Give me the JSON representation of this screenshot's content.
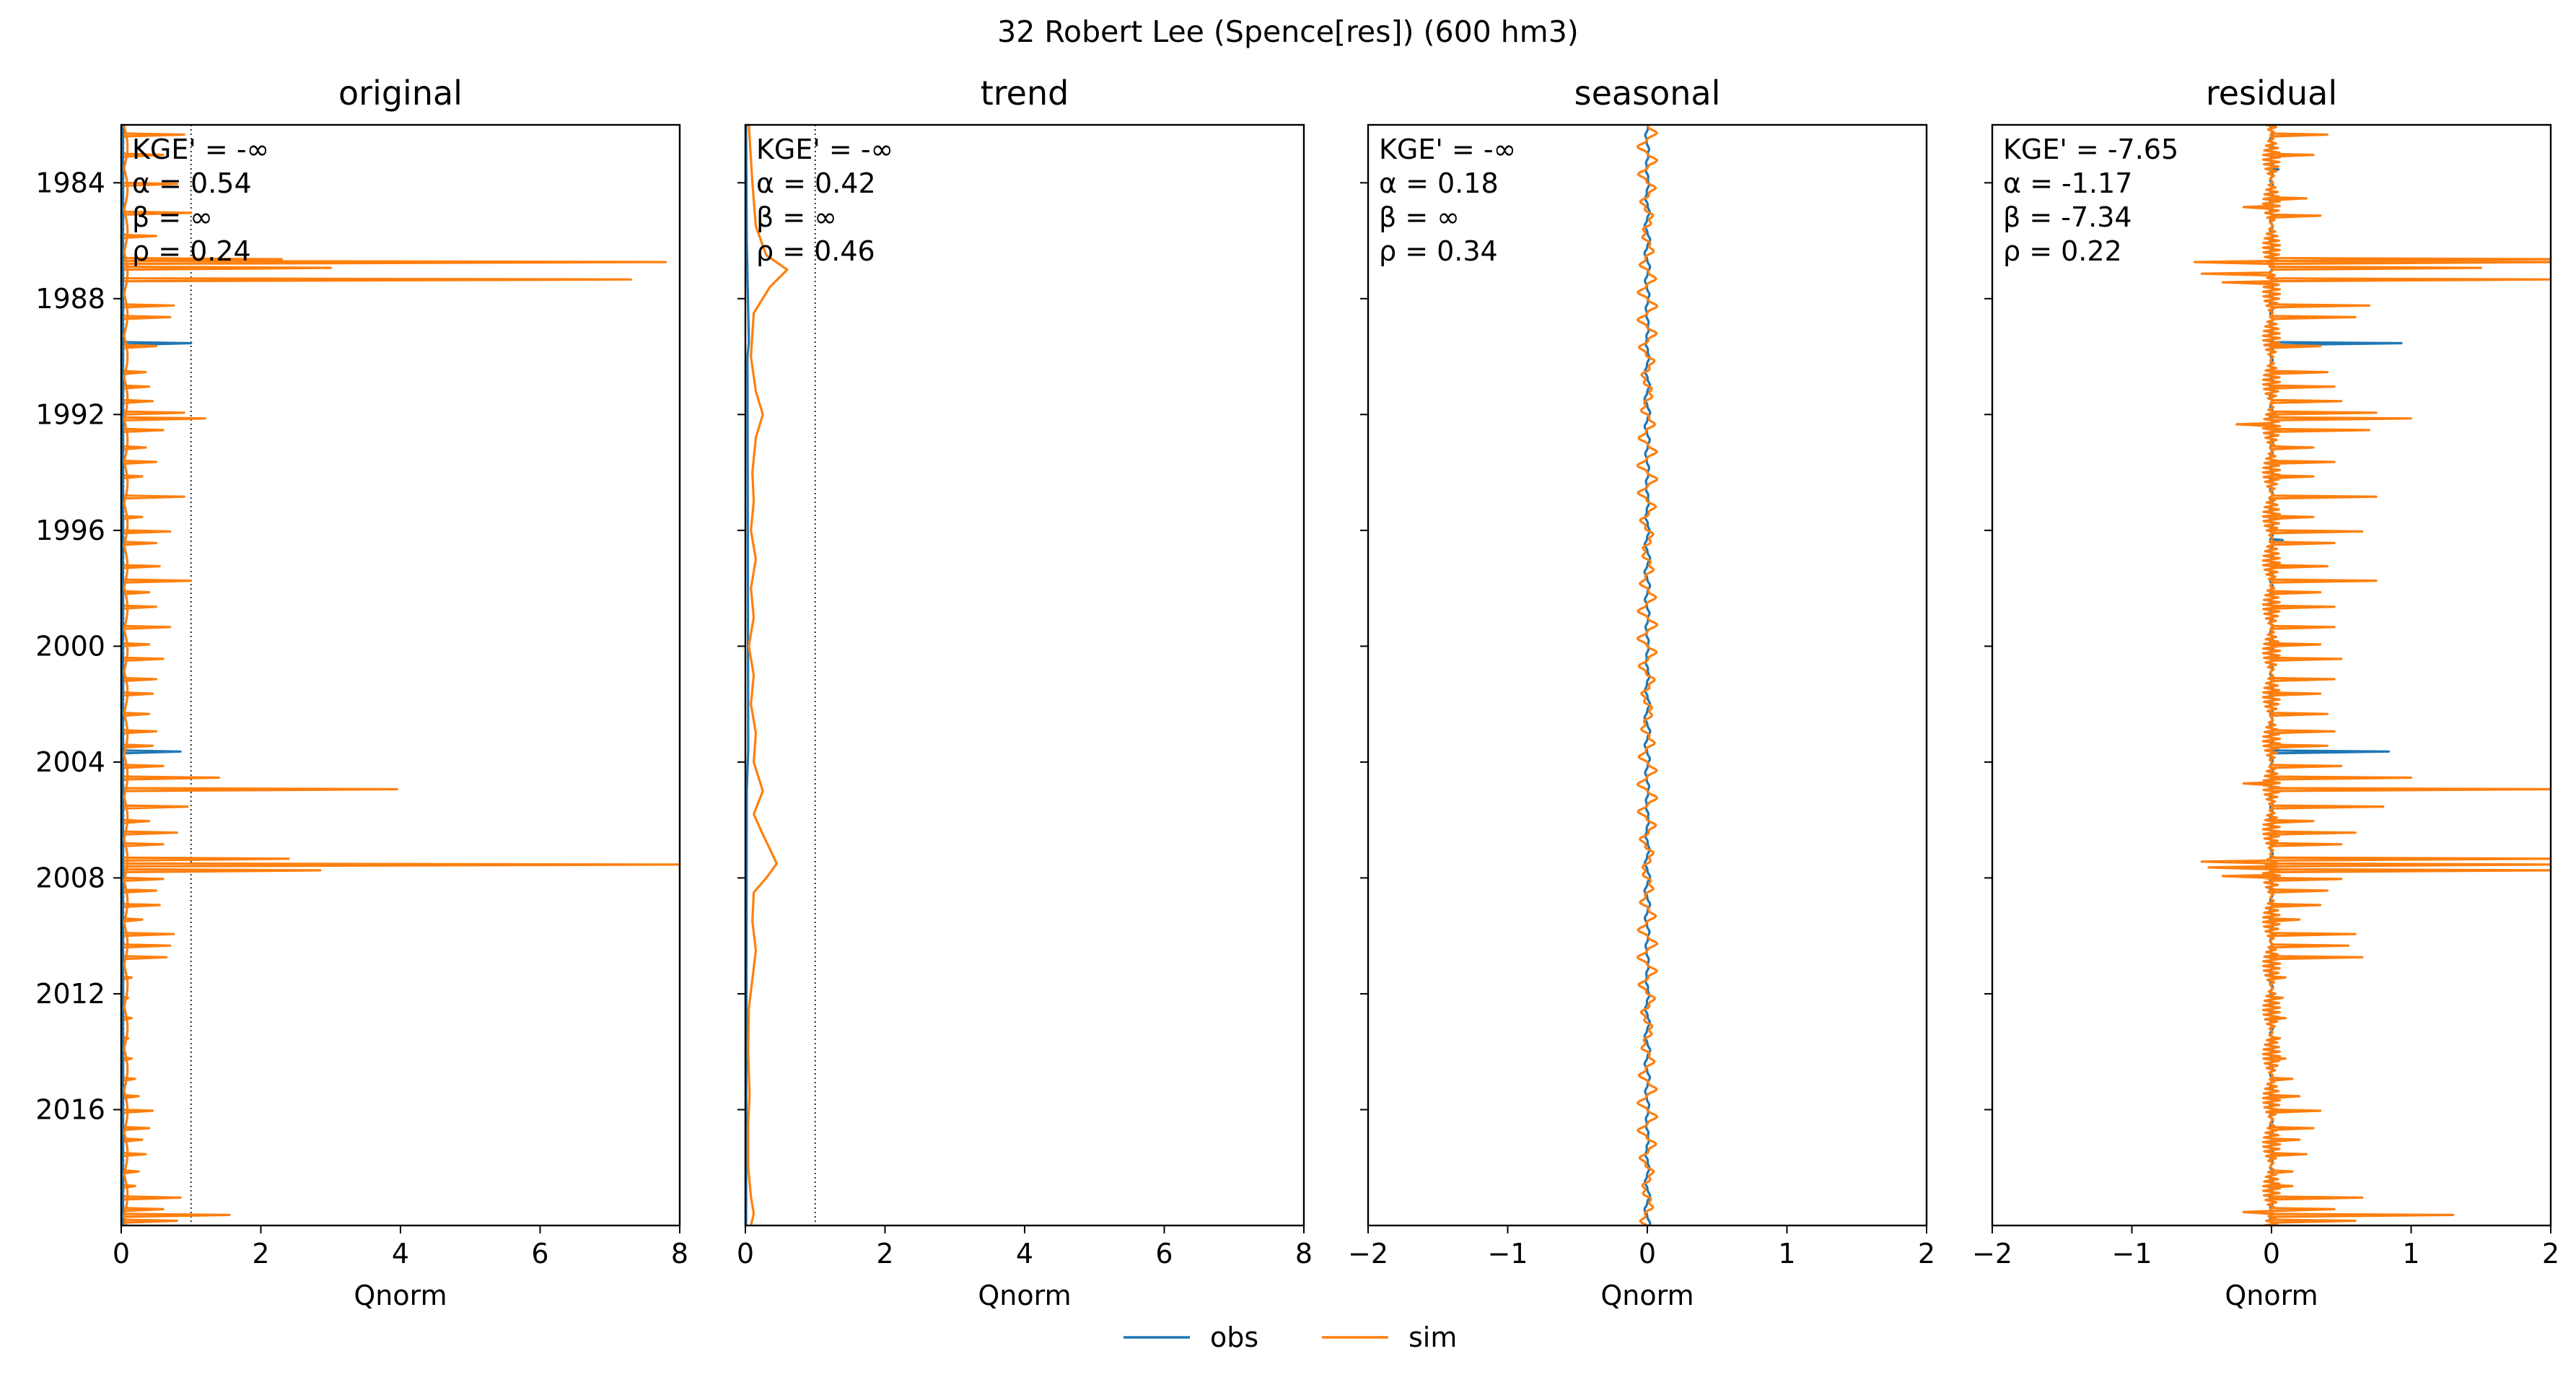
{
  "figure": {
    "suptitle": "32  Robert Lee (Spence[res]) (600 hm3)",
    "legend": [
      {
        "label": "obs",
        "color": "#1f77b4"
      },
      {
        "label": "sim",
        "color": "#ff7f0e"
      }
    ],
    "legend_placement": "bottom-center"
  },
  "chart_data": [
    {
      "type": "line",
      "title": "original",
      "xlabel": "Qnorm",
      "ylabel": "",
      "xlim": [
        0,
        8
      ],
      "xticks": [
        "0",
        "2",
        "4",
        "6",
        "8"
      ],
      "ylim": [
        1982,
        2020
      ],
      "yticks": [
        "1984",
        "1988",
        "1992",
        "1996",
        "2000",
        "2004",
        "2008",
        "2012",
        "2016"
      ],
      "reference_line_x": 1,
      "stats": [
        "KGE' = -∞",
        "α = 0.54",
        "β = ∞",
        "ρ = 0.24"
      ],
      "series": [
        {
          "name": "obs",
          "color": "#1f77b4",
          "x_baseline": 0.02,
          "spikes": [
            [
              1989.5,
              1.0
            ],
            [
              2003.6,
              0.85
            ]
          ]
        },
        {
          "name": "sim",
          "color": "#ff7f0e",
          "x_baseline": 0.04,
          "spikes": [
            [
              1982.3,
              0.9
            ],
            [
              1983.0,
              0.6
            ],
            [
              1984.0,
              0.8
            ],
            [
              1985.0,
              1.0
            ],
            [
              1985.8,
              0.5
            ],
            [
              1986.6,
              2.3
            ],
            [
              1986.7,
              7.8
            ],
            [
              1986.9,
              3.0
            ],
            [
              1987.3,
              7.3
            ],
            [
              1988.2,
              0.75
            ],
            [
              1988.6,
              0.7
            ],
            [
              1989.6,
              0.5
            ],
            [
              1990.5,
              0.35
            ],
            [
              1991.0,
              0.4
            ],
            [
              1991.5,
              0.45
            ],
            [
              1991.9,
              0.9
            ],
            [
              1992.1,
              1.2
            ],
            [
              1992.5,
              0.6
            ],
            [
              1993.1,
              0.35
            ],
            [
              1993.6,
              0.5
            ],
            [
              1994.1,
              0.3
            ],
            [
              1994.8,
              0.9
            ],
            [
              1995.5,
              0.3
            ],
            [
              1996.0,
              0.7
            ],
            [
              1996.4,
              0.5
            ],
            [
              1997.2,
              0.55
            ],
            [
              1997.7,
              1.0
            ],
            [
              1998.1,
              0.4
            ],
            [
              1998.6,
              0.5
            ],
            [
              1999.3,
              0.7
            ],
            [
              1999.9,
              0.4
            ],
            [
              2000.4,
              0.6
            ],
            [
              2001.1,
              0.5
            ],
            [
              2001.6,
              0.45
            ],
            [
              2002.3,
              0.4
            ],
            [
              2002.9,
              0.5
            ],
            [
              2003.4,
              0.45
            ],
            [
              2004.1,
              0.6
            ],
            [
              2004.5,
              1.4
            ],
            [
              2004.9,
              3.95
            ],
            [
              2005.5,
              0.95
            ],
            [
              2006.0,
              0.4
            ],
            [
              2006.4,
              0.8
            ],
            [
              2006.8,
              0.6
            ],
            [
              2007.3,
              2.4
            ],
            [
              2007.5,
              8.0
            ],
            [
              2007.7,
              2.85
            ],
            [
              2008.0,
              0.6
            ],
            [
              2008.4,
              0.5
            ],
            [
              2008.9,
              0.55
            ],
            [
              2009.4,
              0.3
            ],
            [
              2009.9,
              0.75
            ],
            [
              2010.3,
              0.7
            ],
            [
              2010.7,
              0.65
            ],
            [
              2011.4,
              0.15
            ],
            [
              2012.1,
              0.1
            ],
            [
              2012.8,
              0.15
            ],
            [
              2013.5,
              0.1
            ],
            [
              2014.2,
              0.15
            ],
            [
              2014.9,
              0.2
            ],
            [
              2015.5,
              0.25
            ],
            [
              2016.0,
              0.45
            ],
            [
              2016.6,
              0.4
            ],
            [
              2017.0,
              0.3
            ],
            [
              2017.5,
              0.35
            ],
            [
              2018.1,
              0.25
            ],
            [
              2018.6,
              0.2
            ],
            [
              2019.0,
              0.85
            ],
            [
              2019.4,
              0.6
            ],
            [
              2019.6,
              1.55
            ],
            [
              2019.8,
              0.8
            ]
          ]
        }
      ]
    },
    {
      "type": "line",
      "title": "trend",
      "xlabel": "Qnorm",
      "ylabel": "",
      "xlim": [
        0,
        8
      ],
      "xticks": [
        "0",
        "2",
        "4",
        "6",
        "8"
      ],
      "ylim": [
        1982,
        2020
      ],
      "reference_line_x": 1,
      "stats": [
        "KGE' = -∞",
        "α = 0.42",
        "β = ∞",
        "ρ = 0.46"
      ],
      "series": [
        {
          "name": "obs",
          "color": "#1f77b4",
          "points": [
            [
              1982,
              0.01
            ],
            [
              1986,
              0.02
            ],
            [
              1989.5,
              0.05
            ],
            [
              1990,
              0.03
            ],
            [
              2003.6,
              0.04
            ],
            [
              2005,
              0.02
            ],
            [
              2020,
              0.01
            ]
          ]
        },
        {
          "name": "sim",
          "color": "#ff7f0e",
          "points": [
            [
              1982,
              0.05
            ],
            [
              1984,
              0.1
            ],
            [
              1985.5,
              0.15
            ],
            [
              1986.5,
              0.3
            ],
            [
              1987.0,
              0.6
            ],
            [
              1987.6,
              0.35
            ],
            [
              1988.5,
              0.12
            ],
            [
              1990,
              0.08
            ],
            [
              1991.2,
              0.15
            ],
            [
              1992,
              0.25
            ],
            [
              1992.8,
              0.15
            ],
            [
              1994,
              0.1
            ],
            [
              1995,
              0.12
            ],
            [
              1996,
              0.08
            ],
            [
              1997,
              0.15
            ],
            [
              1998,
              0.08
            ],
            [
              1999,
              0.12
            ],
            [
              2000,
              0.05
            ],
            [
              2001,
              0.12
            ],
            [
              2002,
              0.08
            ],
            [
              2003,
              0.15
            ],
            [
              2004,
              0.12
            ],
            [
              2005,
              0.25
            ],
            [
              2005.8,
              0.12
            ],
            [
              2006.5,
              0.25
            ],
            [
              2007.0,
              0.35
            ],
            [
              2007.5,
              0.45
            ],
            [
              2008.0,
              0.3
            ],
            [
              2008.5,
              0.12
            ],
            [
              2009.5,
              0.1
            ],
            [
              2010.5,
              0.15
            ],
            [
              2011.5,
              0.1
            ],
            [
              2012.5,
              0.05
            ],
            [
              2014,
              0.04
            ],
            [
              2015.5,
              0.06
            ],
            [
              2016.5,
              0.04
            ],
            [
              2018,
              0.04
            ],
            [
              2019,
              0.08
            ],
            [
              2019.6,
              0.12
            ],
            [
              2020,
              0.08
            ]
          ]
        }
      ]
    },
    {
      "type": "line",
      "title": "seasonal",
      "xlabel": "Qnorm",
      "ylabel": "",
      "xlim": [
        -2,
        2
      ],
      "xticks": [
        "−2",
        "−1",
        "0",
        "1",
        "2"
      ],
      "ylim": [
        1982,
        2020
      ],
      "stats": [
        "KGE' = -∞",
        "α = 0.18",
        "β = ∞",
        "ρ = 0.34"
      ],
      "series": [
        {
          "name": "obs",
          "color": "#1f77b4",
          "amplitude": 0.02,
          "period_years": 1
        },
        {
          "name": "sim",
          "color": "#ff7f0e",
          "amplitude": 0.07,
          "period_years": 1
        }
      ]
    },
    {
      "type": "line",
      "title": "residual",
      "xlabel": "Qnorm",
      "ylabel": "",
      "xlim": [
        -2,
        2
      ],
      "xticks": [
        "−2",
        "−1",
        "0",
        "1",
        "2"
      ],
      "ylim": [
        1982,
        2020
      ],
      "stats": [
        "KGE' = -7.65",
        "α = -1.17",
        "β = -7.34",
        "ρ = 0.22"
      ],
      "series": [
        {
          "name": "obs",
          "color": "#1f77b4",
          "spikes": [
            [
              1989.5,
              0.93
            ],
            [
              2003.6,
              0.84
            ],
            [
              1983.5,
              0.05
            ],
            [
              1996.3,
              0.08
            ]
          ]
        },
        {
          "name": "sim",
          "color": "#ff7f0e",
          "spikes": [
            [
              1982.3,
              0.4
            ],
            [
              1983.0,
              0.3
            ],
            [
              1984.5,
              0.25
            ],
            [
              1985.1,
              0.35
            ],
            [
              1986.6,
              2.0
            ],
            [
              1986.7,
              2.0
            ],
            [
              1986.9,
              1.5
            ],
            [
              1987.3,
              2.0
            ],
            [
              1988.2,
              0.7
            ],
            [
              1988.6,
              0.6
            ],
            [
              1989.6,
              0.35
            ],
            [
              1990.5,
              0.4
            ],
            [
              1991.0,
              0.45
            ],
            [
              1991.5,
              0.5
            ],
            [
              1991.9,
              0.75
            ],
            [
              1992.1,
              1.0
            ],
            [
              1992.5,
              0.7
            ],
            [
              1993.1,
              0.3
            ],
            [
              1993.6,
              0.45
            ],
            [
              1994.1,
              0.3
            ],
            [
              1994.8,
              0.75
            ],
            [
              1995.5,
              0.3
            ],
            [
              1996.0,
              0.65
            ],
            [
              1996.4,
              0.45
            ],
            [
              1997.2,
              0.4
            ],
            [
              1997.7,
              0.75
            ],
            [
              1998.1,
              0.35
            ],
            [
              1998.6,
              0.45
            ],
            [
              1999.3,
              0.45
            ],
            [
              1999.9,
              0.35
            ],
            [
              2000.4,
              0.5
            ],
            [
              2001.1,
              0.45
            ],
            [
              2001.6,
              0.35
            ],
            [
              2002.3,
              0.4
            ],
            [
              2002.9,
              0.45
            ],
            [
              2003.4,
              0.4
            ],
            [
              2004.1,
              0.5
            ],
            [
              2004.5,
              1.0
            ],
            [
              2004.9,
              2.0
            ],
            [
              2005.5,
              0.8
            ],
            [
              2006.0,
              0.3
            ],
            [
              2006.4,
              0.6
            ],
            [
              2006.8,
              0.5
            ],
            [
              2007.3,
              2.0
            ],
            [
              2007.5,
              2.0
            ],
            [
              2007.7,
              2.0
            ],
            [
              2008.0,
              0.5
            ],
            [
              2008.4,
              0.4
            ],
            [
              2008.9,
              0.35
            ],
            [
              2009.4,
              0.2
            ],
            [
              2009.9,
              0.6
            ],
            [
              2010.3,
              0.55
            ],
            [
              2010.7,
              0.65
            ],
            [
              2011.4,
              0.1
            ],
            [
              2012.1,
              0.08
            ],
            [
              2012.8,
              0.1
            ],
            [
              2013.5,
              0.06
            ],
            [
              2014.2,
              0.1
            ],
            [
              2014.9,
              0.15
            ],
            [
              2015.5,
              0.2
            ],
            [
              2016.0,
              0.35
            ],
            [
              2016.6,
              0.3
            ],
            [
              2017.0,
              0.2
            ],
            [
              2017.5,
              0.25
            ],
            [
              2018.1,
              0.15
            ],
            [
              2018.6,
              0.15
            ],
            [
              2019.0,
              0.65
            ],
            [
              2019.4,
              0.45
            ],
            [
              2019.6,
              1.3
            ],
            [
              2019.8,
              0.6
            ]
          ],
          "negative_spikes": [
            [
              1986.7,
              -0.55
            ],
            [
              1987.1,
              -0.5
            ],
            [
              1987.4,
              -0.35
            ],
            [
              2007.4,
              -0.5
            ],
            [
              2007.6,
              -0.45
            ],
            [
              2007.9,
              -0.35
            ],
            [
              1984.8,
              -0.2
            ],
            [
              1992.3,
              -0.25
            ],
            [
              2004.7,
              -0.2
            ],
            [
              2019.5,
              -0.2
            ]
          ]
        }
      ]
    }
  ]
}
